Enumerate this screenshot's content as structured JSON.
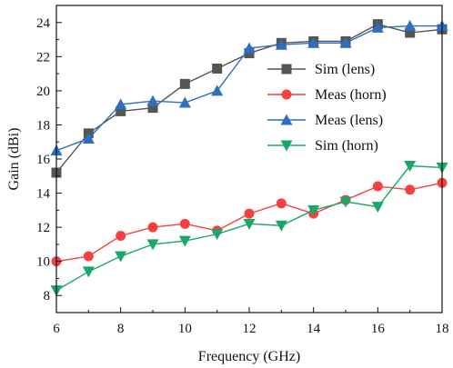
{
  "chart_data": {
    "type": "line",
    "xlabel": "Frequency (GHz)",
    "ylabel": "Gain (dBi)",
    "xlim": [
      6,
      18
    ],
    "ylim": [
      7,
      25
    ],
    "xticks": [
      6,
      8,
      10,
      12,
      14,
      16,
      18
    ],
    "yticks": [
      8,
      10,
      12,
      14,
      16,
      18,
      20,
      22,
      24
    ],
    "grid": false,
    "legend_position": "top-right",
    "x": [
      6,
      7,
      8,
      9,
      10,
      11,
      12,
      13,
      14,
      15,
      16,
      17,
      18
    ],
    "series": [
      {
        "name": "Sim (lens)",
        "color": "#555555",
        "marker": "square",
        "values": [
          15.2,
          17.5,
          18.8,
          19.0,
          20.4,
          21.3,
          22.2,
          22.8,
          22.9,
          22.9,
          23.9,
          23.4,
          23.6
        ]
      },
      {
        "name": "Meas (horn)",
        "color": "#f44040",
        "marker": "circle",
        "values": [
          10.0,
          10.3,
          11.5,
          12.0,
          12.2,
          11.8,
          12.8,
          13.4,
          12.8,
          13.6,
          14.4,
          14.2,
          14.6
        ]
      },
      {
        "name": "Meas (lens)",
        "color": "#2d6fc0",
        "marker": "triangle-up",
        "values": [
          16.5,
          17.2,
          19.2,
          19.4,
          19.3,
          20.0,
          22.5,
          22.7,
          22.8,
          22.8,
          23.7,
          23.8,
          23.8
        ]
      },
      {
        "name": "Sim (horn)",
        "color": "#1aa86a",
        "marker": "triangle-down",
        "values": [
          8.3,
          9.4,
          10.3,
          11.0,
          11.2,
          11.6,
          12.2,
          12.1,
          13.0,
          13.5,
          13.2,
          15.6,
          15.5
        ]
      }
    ]
  }
}
